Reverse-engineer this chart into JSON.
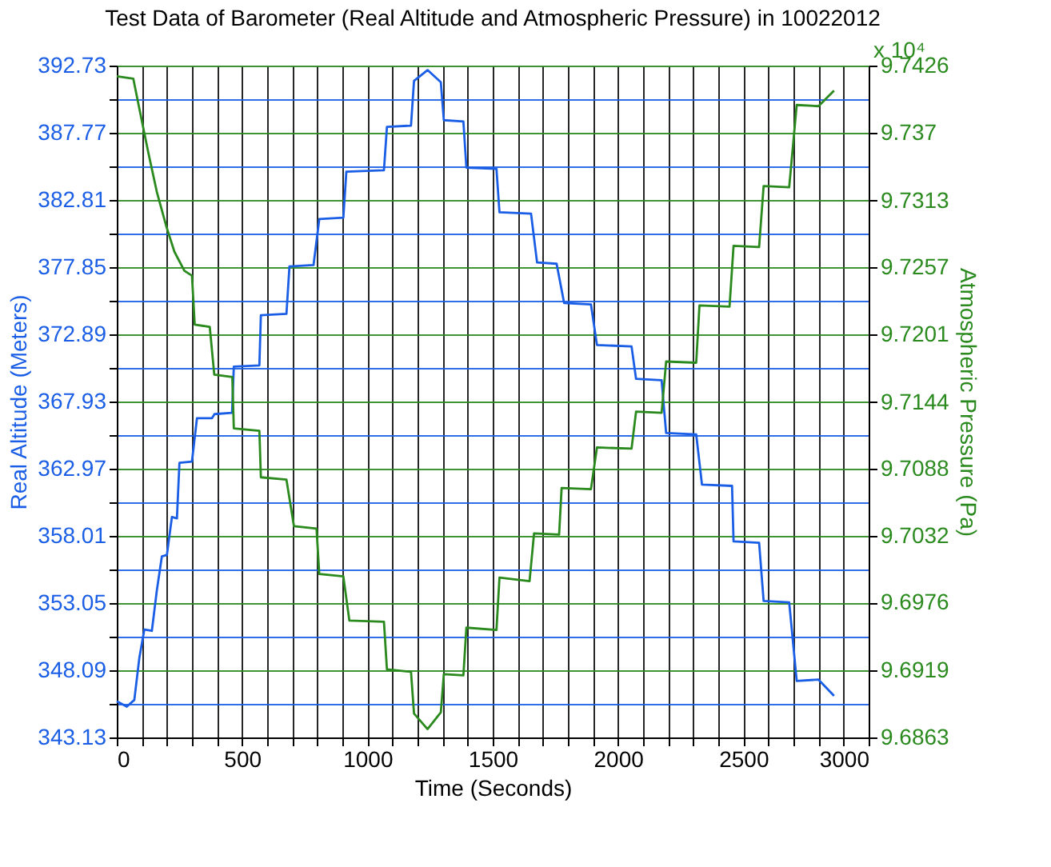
{
  "chart_data": {
    "type": "line",
    "title": "Test Data of Barometer (Real Altitude and Atmospheric Pressure) in 10022012",
    "xlabel": "Time (Seconds)",
    "ylabel": "Real Altitude (Meters)",
    "y2label": "Atmospheric Pressure (Pa)",
    "annotations": [
      "x 10⁴"
    ],
    "series": [
      {
        "color": "#1a5ee6",
        "x": [
          0,
          40,
          70,
          90,
          110,
          140,
          160,
          180,
          200,
          220,
          240,
          250,
          300,
          320,
          380,
          390,
          460,
          467,
          569,
          575,
          677,
          689,
          785,
          808,
          904,
          916,
          1066,
          1078,
          1174,
          1186,
          1240,
          1293,
          1305,
          1383,
          1395,
          1515,
          1527,
          1653,
          1677,
          1755,
          1785,
          1892,
          1916,
          2054,
          2072,
          2174,
          2192,
          2312,
          2335,
          2455,
          2461,
          2563,
          2581,
          2683,
          2713,
          2800,
          2862
        ],
        "values": [
          345.8,
          345.4,
          345.9,
          349.0,
          351.1,
          351.0,
          354.0,
          356.5,
          356.6,
          359.4,
          359.3,
          363.4,
          363.5,
          366.7,
          366.7,
          367.0,
          367.1,
          370.5,
          370.6,
          374.3,
          374.4,
          377.9,
          378.0,
          381.4,
          381.5,
          384.9,
          385.0,
          388.2,
          388.3,
          391.6,
          392.4,
          391.5,
          388.7,
          388.6,
          385.2,
          385.1,
          381.9,
          381.8,
          378.2,
          378.1,
          375.2,
          375.1,
          372.1,
          372.0,
          369.6,
          369.5,
          365.6,
          365.5,
          361.8,
          361.7,
          357.6,
          357.5,
          353.2,
          353.1,
          347.3,
          347.4,
          346.2
        ]
      },
      {
        "color": "#2a8a1e",
        "axis": "y2",
        "x": [
          0,
          66,
          90,
          126,
          160,
          198,
          230,
          270,
          300,
          311,
          371,
          389,
          461,
          467,
          569,
          575,
          677,
          707,
          797,
          808,
          904,
          928,
          1066,
          1078,
          1174,
          1186,
          1240,
          1293,
          1305,
          1383,
          1395,
          1515,
          1527,
          1647,
          1665,
          1765,
          1775,
          1892,
          1916,
          2054,
          2072,
          2174,
          2192,
          2312,
          2325,
          2445,
          2461,
          2563,
          2581,
          2683,
          2713,
          2800,
          2862
        ],
        "values": [
          9.7417,
          9.7415,
          9.739,
          9.7353,
          9.732,
          9.7291,
          9.727,
          9.7254,
          9.725,
          9.7209,
          9.7207,
          9.7167,
          9.7165,
          9.7122,
          9.712,
          9.7081,
          9.7079,
          9.704,
          9.7038,
          9.7,
          9.6998,
          9.6961,
          9.696,
          9.692,
          9.6918,
          9.6883,
          9.687,
          9.6884,
          9.6916,
          9.6915,
          9.6955,
          9.6953,
          9.6997,
          9.6994,
          9.7034,
          9.7033,
          9.7072,
          9.7071,
          9.7106,
          9.7105,
          9.7136,
          9.7135,
          9.7178,
          9.7177,
          9.7225,
          9.7224,
          9.7275,
          9.7274,
          9.7325,
          9.7324,
          9.7393,
          9.7392,
          9.7405
        ]
      }
    ],
    "xlim": [
      0,
      3000
    ],
    "xticks": [
      0,
      {
        "value": 100,
        "label": null
      },
      {
        "value": 200,
        "label": null
      },
      {
        "value": 300,
        "label": null
      },
      {
        "value": 400,
        "label": null
      },
      500,
      {
        "value": 600,
        "label": null
      },
      {
        "value": 700,
        "label": null
      },
      {
        "value": 800,
        "label": null
      },
      {
        "value": 900,
        "label": null
      },
      1000,
      {
        "value": 1100,
        "label": null
      },
      {
        "value": 1200,
        "label": null
      },
      {
        "value": 1300,
        "label": null
      },
      {
        "value": 1400,
        "label": null
      },
      1500,
      {
        "value": 1600,
        "label": null
      },
      {
        "value": 1700,
        "label": null
      },
      {
        "value": 1800,
        "label": null
      },
      {
        "value": 1900,
        "label": null
      },
      2000,
      {
        "value": 2100,
        "label": null
      },
      {
        "value": 2200,
        "label": null
      },
      {
        "value": 2300,
        "label": null
      },
      {
        "value": 2400,
        "label": null
      },
      2500,
      {
        "value": 2600,
        "label": null
      },
      {
        "value": 2700,
        "label": null
      },
      {
        "value": 2800,
        "label": null
      },
      {
        "value": 2900,
        "label": null
      },
      3000
    ],
    "ylim": [
      343.13,
      392.73
    ],
    "yticks": [
      343.13,
      {
        "value": 345.61,
        "label": null
      },
      348.09,
      {
        "value": 350.57,
        "label": null
      },
      353.05,
      {
        "value": 355.53,
        "label": null
      },
      358.01,
      {
        "value": 360.49,
        "label": null
      },
      362.97,
      {
        "value": 365.45,
        "label": null
      },
      367.93,
      {
        "value": 370.41,
        "label": null
      },
      372.89,
      {
        "value": 375.37,
        "label": null
      },
      377.85,
      {
        "value": 380.33,
        "label": null
      },
      382.81,
      {
        "value": 385.29,
        "label": null
      },
      387.77,
      {
        "value": 390.25,
        "label": null
      },
      392.73
    ],
    "y2lim": [
      9.6863,
      9.7426
    ],
    "y2ticks": [
      9.6863,
      9.6919,
      9.6976,
      9.7032,
      9.7088,
      9.7144,
      9.7201,
      9.7257,
      9.7313,
      9.737,
      9.7426
    ],
    "grid": true,
    "line_style": "solid",
    "marker": "none"
  }
}
